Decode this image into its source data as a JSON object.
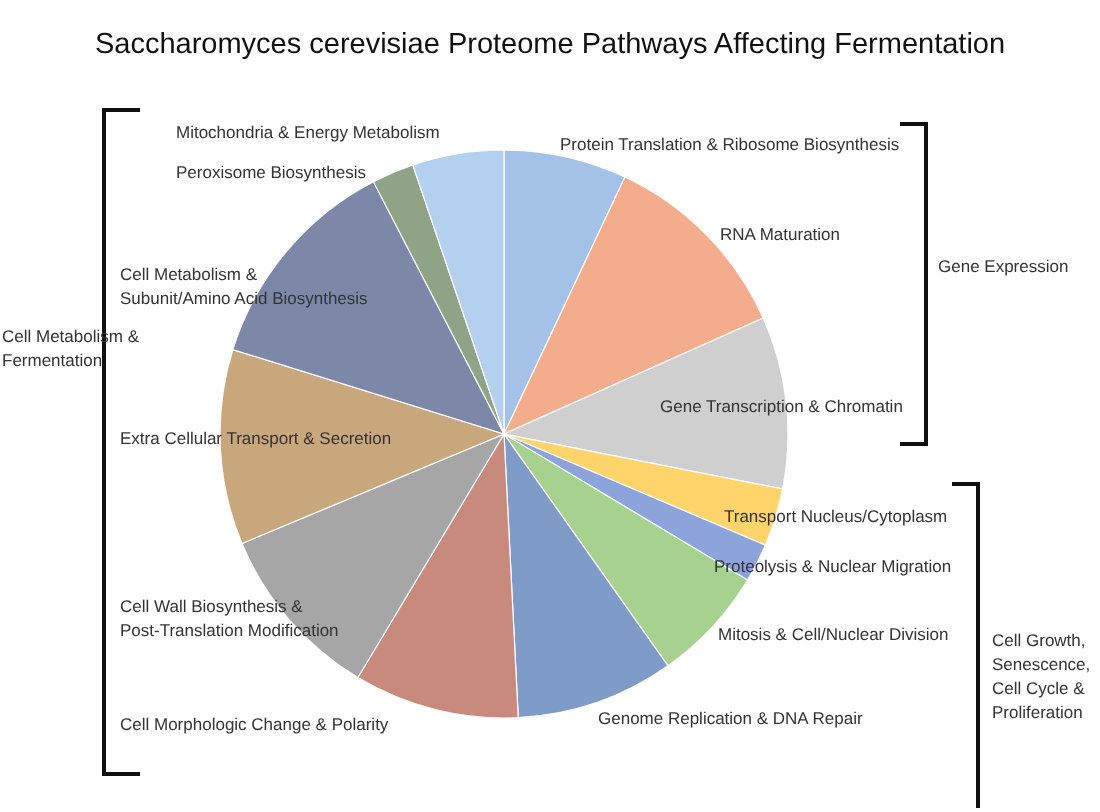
{
  "chart_data": {
    "type": "pie",
    "title": "Saccharomyces cerevisiae Proteome Pathways Affecting Fermentation",
    "categories": [
      "Protein Translation & Ribosome Biosynthesis",
      "RNA Maturation",
      "Gene Transcription & Chromatin",
      "Transport Nucleus/Cytoplasm",
      "Proteolysis & Nuclear Migration",
      "Mitosis & Cell/Nuclear Division",
      "Genome Replication & DNA Repair",
      "Cell Morphologic Change & Polarity",
      "Cell Wall Biosynthesis & Post-Translation Modification",
      "Extra Cellular Transport & Secretion",
      "Cell Metabolism & Subunit/Amino Acid Biosynthesis",
      "Peroxisome Biosynthesis",
      "Mitochondria & Energy Metabolism"
    ],
    "values": [
      7.0,
      11.3,
      9.8,
      3.3,
      2.2,
      6.6,
      9.0,
      9.4,
      10.1,
      11.1,
      12.6,
      2.4,
      5.2
    ],
    "colors": [
      "#a4c2e8",
      "#f4ad8c",
      "#cfcfcf",
      "#ffd56b",
      "#8da4db",
      "#a6d18e",
      "#7f9cc9",
      "#c98a7e",
      "#a6a6a6",
      "#c9a77c",
      "#7d87a8",
      "#8fa386",
      "#b4d0ef"
    ],
    "annotations": [
      "Gene Expression",
      "Cell Growth, Senescence, Cell Cycle & Proliferation",
      "Cell Metabolism & Fermentation"
    ]
  }
}
